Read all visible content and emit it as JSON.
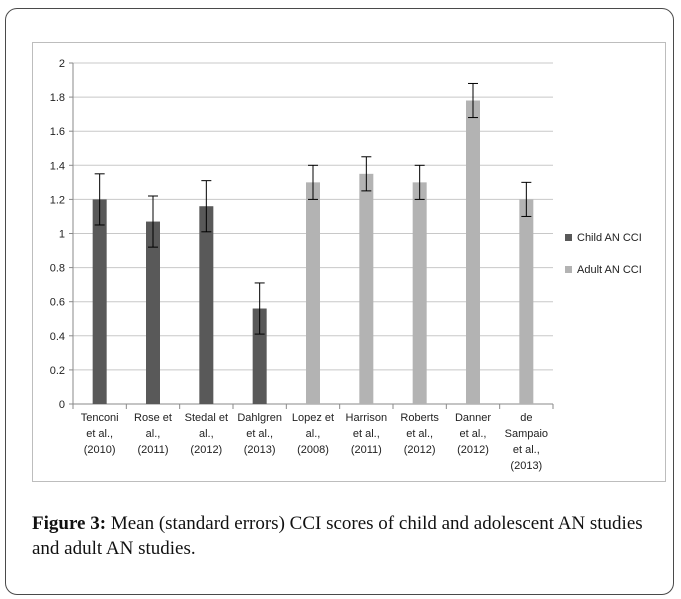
{
  "chart_data": {
    "type": "bar",
    "categories": [
      [
        "Tenconi",
        "et al.,",
        "(2010)"
      ],
      [
        "Rose et",
        "al.,",
        "(2011)"
      ],
      [
        "Stedal et",
        "al.,",
        "(2012)"
      ],
      [
        "Dahlgren",
        "et al.,",
        "(2013)"
      ],
      [
        "Lopez et",
        "al.,",
        "(2008)"
      ],
      [
        "Harrison",
        "et al.,",
        "(2011)"
      ],
      [
        "Roberts",
        "et al.,",
        "(2012)"
      ],
      [
        "Danner",
        "et al.,",
        "(2012)"
      ],
      [
        "de",
        "Sampaio",
        "et al.,",
        "(2013)"
      ]
    ],
    "series": [
      {
        "name": "Child AN CCI",
        "color": "#595959",
        "values": [
          1.2,
          1.07,
          1.16,
          0.56,
          null,
          null,
          null,
          null,
          null
        ],
        "errors": [
          0.15,
          0.15,
          0.15,
          0.15,
          null,
          null,
          null,
          null,
          null
        ]
      },
      {
        "name": "Adult AN CCI",
        "color": "#b3b3b3",
        "values": [
          null,
          null,
          null,
          null,
          1.3,
          1.35,
          1.3,
          1.78,
          1.2
        ],
        "errors": [
          null,
          null,
          null,
          null,
          0.1,
          0.1,
          0.1,
          0.1,
          0.1
        ]
      }
    ],
    "ylim": [
      0,
      2
    ],
    "yticks": [
      "0",
      "0.2",
      "0.4",
      "0.6",
      "0.8",
      "1",
      "1.2",
      "1.4",
      "1.6",
      "1.8",
      "2"
    ],
    "grid": true,
    "legend": "right",
    "title": "",
    "xlabel": "",
    "ylabel": ""
  },
  "caption": {
    "label": "Figure 3:",
    "text": " Mean (standard errors) CCI scores of child and adolescent AN studies and adult AN studies."
  }
}
